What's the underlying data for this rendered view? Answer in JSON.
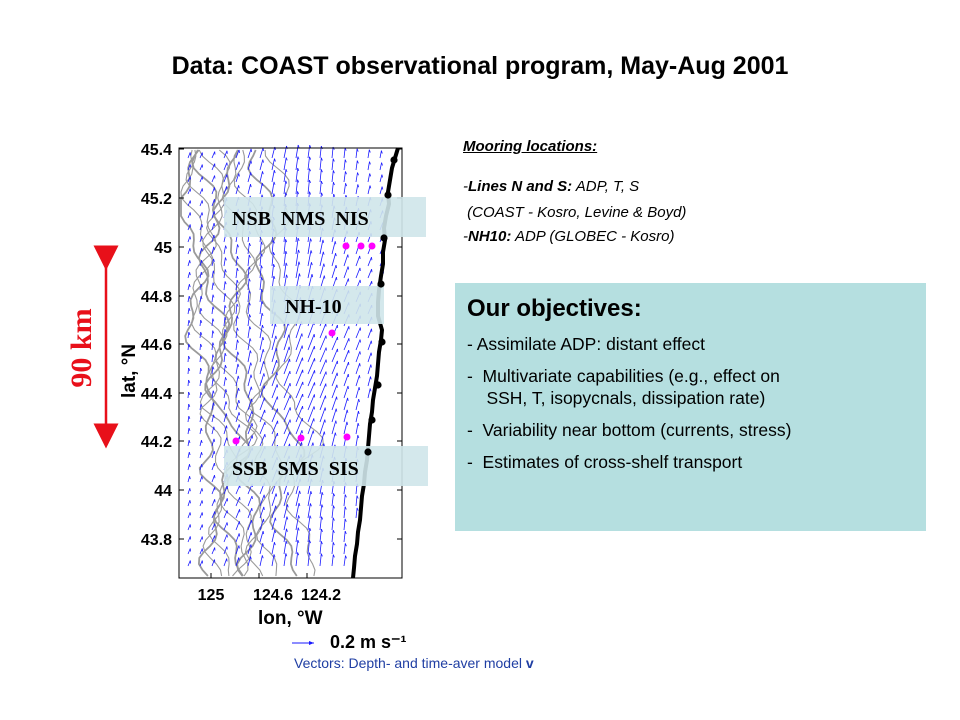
{
  "title": "Data: COAST observational program, May-Aug 2001",
  "mooring": {
    "heading": "Mooring locations:",
    "line1_bold": "Lines N and S:",
    "line1_rest": " ADP, T, S",
    "line2": " (COAST - Kosro, Levine & Boyd)",
    "line3_bold": "NH10:",
    "line3_rest": " ADP (GLOBEC - Kosro)",
    "prefix": "-"
  },
  "objectives": {
    "title": "Our objectives:",
    "items": [
      "- Assimilate ADP: distant effect",
      "-  Multivariate capabilities (e.g., effect on\n    SSH, T, isopycnals, dissipation rate)",
      "-  Variability near bottom (currents, stress)",
      "-  Estimates of cross-shelf transport"
    ]
  },
  "map": {
    "lat_ticks": [
      "45.4",
      "45.2",
      "45",
      "44.8",
      "44.6",
      "44.4",
      "44.2",
      "44",
      "43.8"
    ],
    "lon_ticks": [
      "125",
      "124.6",
      "124.2"
    ],
    "lat_label": "lat, °N",
    "lon_label": "lon, °W",
    "scale_vector_label": "0.2 m s⁻¹",
    "labels": {
      "north": "NSB  NMS  NIS",
      "nh10": "NH-10",
      "south": "SSB  SMS  SIS"
    },
    "distance_label": "90 km",
    "colors": {
      "vector": "#1a1aff",
      "mooring": "#ff00ff",
      "coast": "#000000",
      "contour": "#9a9a9a",
      "label_box": "#cfe5ea",
      "scale": "#e8101a"
    }
  },
  "caption": {
    "text": "Vectors: Depth- and time-aver model ",
    "bold": "v"
  }
}
